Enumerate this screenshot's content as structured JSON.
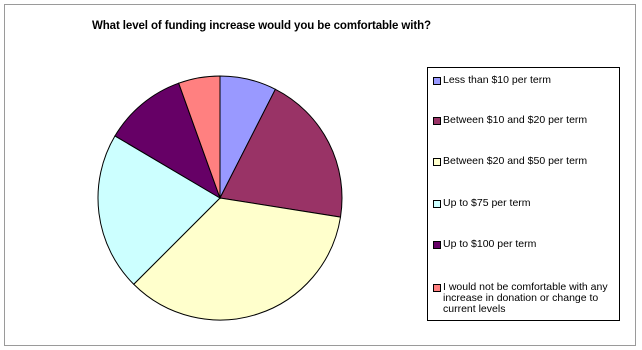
{
  "chart_data": {
    "type": "pie",
    "title": "What level of funding increase would you be comfortable with?",
    "legend_position": "right",
    "slices": [
      {
        "label": "Less than $10 per term",
        "value": 7.5,
        "color": "#9999ff"
      },
      {
        "label": "Between $10 and $20 per term",
        "value": 20,
        "color": "#993366"
      },
      {
        "label": "Between $20 and $50 per term",
        "value": 35,
        "color": "#ffffcc"
      },
      {
        "label": "Up to $75 per term",
        "value": 21,
        "color": "#ccffff"
      },
      {
        "label": "Up to $100 per term",
        "value": 11,
        "color": "#660066"
      },
      {
        "label": "I would  not be comfortable with any increase in donation or change to current levels",
        "value": 5.5,
        "color": "#ff8080"
      }
    ]
  }
}
